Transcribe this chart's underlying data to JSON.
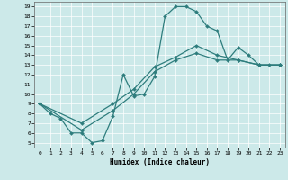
{
  "xlabel": "Humidex (Indice chaleur)",
  "xlim": [
    -0.5,
    23.5
  ],
  "ylim": [
    4.5,
    19.5
  ],
  "xticks": [
    0,
    1,
    2,
    3,
    4,
    5,
    6,
    7,
    8,
    9,
    10,
    11,
    12,
    13,
    14,
    15,
    16,
    17,
    18,
    19,
    20,
    21,
    22,
    23
  ],
  "yticks": [
    5,
    6,
    7,
    8,
    9,
    10,
    11,
    12,
    13,
    14,
    15,
    16,
    17,
    18,
    19
  ],
  "bg_color": "#cce9e9",
  "line_color": "#2e7d7d",
  "line1_x": [
    0,
    1,
    2,
    3,
    4,
    5,
    6,
    7,
    8,
    9,
    10,
    11,
    12,
    13,
    14,
    15,
    16,
    17,
    18,
    19,
    20,
    21,
    22,
    23
  ],
  "line1_y": [
    9.0,
    8.0,
    7.5,
    6.0,
    6.0,
    5.0,
    5.2,
    7.7,
    12.0,
    9.8,
    10.0,
    11.8,
    18.0,
    19.0,
    19.0,
    18.5,
    17.0,
    16.5,
    13.5,
    14.8,
    14.0,
    13.0,
    13.0,
    13.0
  ],
  "line2_x": [
    0,
    4,
    7,
    9,
    11,
    13,
    15,
    17,
    19,
    21,
    23
  ],
  "line2_y": [
    9.0,
    6.3,
    8.3,
    10.0,
    12.3,
    13.5,
    14.2,
    13.5,
    13.5,
    13.0,
    13.0
  ],
  "line3_x": [
    0,
    4,
    7,
    9,
    11,
    13,
    15,
    17,
    19,
    21,
    23
  ],
  "line3_y": [
    9.0,
    7.0,
    9.0,
    10.5,
    12.8,
    13.8,
    15.0,
    14.0,
    13.5,
    13.0,
    13.0
  ]
}
